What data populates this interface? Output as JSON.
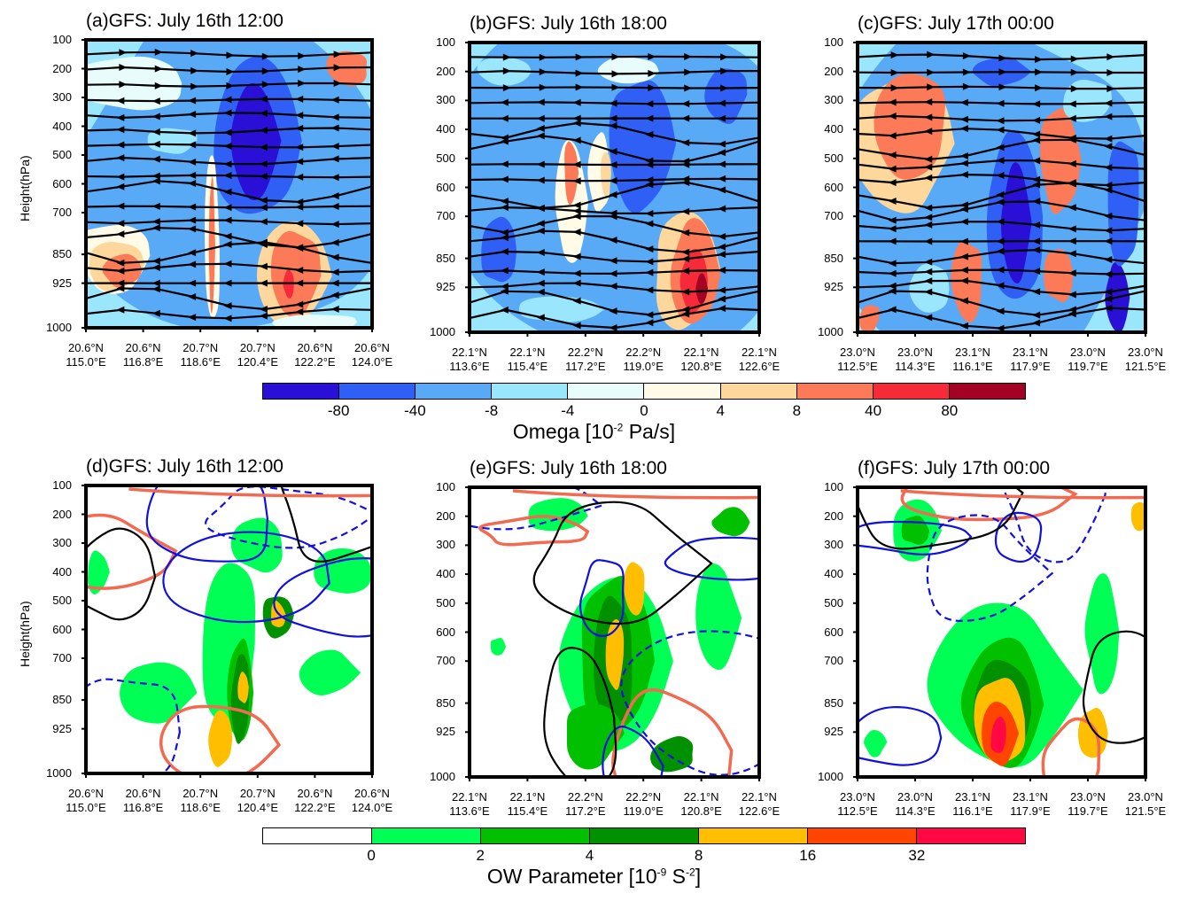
{
  "chart_data": [
    {
      "type": "heatmap",
      "panel": "a",
      "title": "(a)GFS: July 16th 12:00",
      "ylabel": "Height(hPa)",
      "y_ticks": [
        "100",
        "200",
        "300",
        "400",
        "500",
        "600",
        "700",
        "850",
        "925",
        "1000"
      ],
      "x_ticks": [
        [
          "20.6°N",
          "115.0°E"
        ],
        [
          "20.6°N",
          "116.8°E"
        ],
        [
          "20.7°N",
          "118.6°E"
        ],
        [
          "20.7°N",
          "120.4°E"
        ],
        [
          "20.6°N",
          "122.2°E"
        ],
        [
          "20.6°N",
          "124.0°E"
        ]
      ],
      "field": "omega",
      "overlay": "streamlines"
    },
    {
      "type": "heatmap",
      "panel": "b",
      "title": "(b)GFS: July 16th 18:00",
      "y_ticks": [
        "100",
        "200",
        "300",
        "400",
        "500",
        "600",
        "700",
        "850",
        "925",
        "1000"
      ],
      "x_ticks": [
        [
          "22.1°N",
          "113.6°E"
        ],
        [
          "22.1°N",
          "115.4°E"
        ],
        [
          "22.2°N",
          "117.2°E"
        ],
        [
          "22.2°N",
          "119.0°E"
        ],
        [
          "22.1°N",
          "120.8°E"
        ],
        [
          "22.1°N",
          "122.6°E"
        ]
      ],
      "field": "omega",
      "overlay": "streamlines"
    },
    {
      "type": "heatmap",
      "panel": "c",
      "title": "(c)GFS: July 17th 00:00",
      "y_ticks": [
        "100",
        "200",
        "300",
        "400",
        "500",
        "600",
        "700",
        "850",
        "925",
        "1000"
      ],
      "x_ticks": [
        [
          "23.0°N",
          "112.5°E"
        ],
        [
          "23.0°N",
          "114.3°E"
        ],
        [
          "23.1°N",
          "116.1°E"
        ],
        [
          "23.1°N",
          "117.9°E"
        ],
        [
          "23.0°N",
          "119.7°E"
        ],
        [
          "23.0°N",
          "121.5°E"
        ]
      ],
      "field": "omega",
      "overlay": "streamlines"
    },
    {
      "type": "heatmap",
      "panel": "d",
      "title": "(d)GFS: July 16th 12:00",
      "ylabel": "Height(hPa)",
      "y_ticks": [
        "100",
        "200",
        "300",
        "400",
        "500",
        "600",
        "700",
        "850",
        "925",
        "1000"
      ],
      "x_ticks": [
        [
          "20.6°N",
          "115.0°E"
        ],
        [
          "20.6°N",
          "116.8°E"
        ],
        [
          "20.7°N",
          "118.6°E"
        ],
        [
          "20.7°N",
          "120.4°E"
        ],
        [
          "20.6°N",
          "122.2°E"
        ],
        [
          "20.6°N",
          "124.0°E"
        ]
      ],
      "field": "ow",
      "overlay": "contours"
    },
    {
      "type": "heatmap",
      "panel": "e",
      "title": "(e)GFS: July 16th 18:00",
      "y_ticks": [
        "100",
        "200",
        "300",
        "400",
        "500",
        "600",
        "700",
        "850",
        "925",
        "1000"
      ],
      "x_ticks": [
        [
          "22.1°N",
          "113.6°E"
        ],
        [
          "22.1°N",
          "115.4°E"
        ],
        [
          "22.2°N",
          "117.2°E"
        ],
        [
          "22.2°N",
          "119.0°E"
        ],
        [
          "22.1°N",
          "120.8°E"
        ],
        [
          "22.1°N",
          "122.6°E"
        ]
      ],
      "field": "ow",
      "overlay": "contours"
    },
    {
      "type": "heatmap",
      "panel": "f",
      "title": "(f)GFS: July 17th 00:00",
      "y_ticks": [
        "100",
        "200",
        "300",
        "400",
        "500",
        "600",
        "700",
        "850",
        "925",
        "1000"
      ],
      "x_ticks": [
        [
          "23.0°N",
          "112.5°E"
        ],
        [
          "23.0°N",
          "114.3°E"
        ],
        [
          "23.1°N",
          "116.1°E"
        ],
        [
          "23.1°N",
          "117.9°E"
        ],
        [
          "23.0°N",
          "119.7°E"
        ],
        [
          "23.0°N",
          "121.5°E"
        ]
      ],
      "field": "ow",
      "overlay": "contours"
    }
  ],
  "colorbars": {
    "omega": {
      "title_main": "Omega [10",
      "title_sup": "-2",
      "title_end": " Pa/s]",
      "labels": [
        "-80",
        "-40",
        "-8",
        "-4",
        "0",
        "4",
        "8",
        "40",
        "80"
      ],
      "colors": [
        "#2a0fd6",
        "#2f5ff5",
        "#58aaf7",
        "#9ae6fc",
        "#e8fcfc",
        "#fffbe6",
        "#fdd79b",
        "#fc7a57",
        "#f72a3a",
        "#a30224"
      ]
    },
    "ow": {
      "title_main": "OW Parameter [10",
      "title_sup": "-9",
      "title_mid": " S",
      "title_sup2": "-2",
      "title_end": "]",
      "labels": [
        "0",
        "2",
        "4",
        "8",
        "16",
        "32"
      ],
      "colors": [
        "#ffffff",
        "#00ff55",
        "#00c000",
        "#009000",
        "#ffbe00",
        "#ff4500",
        "#ff0844"
      ]
    }
  }
}
